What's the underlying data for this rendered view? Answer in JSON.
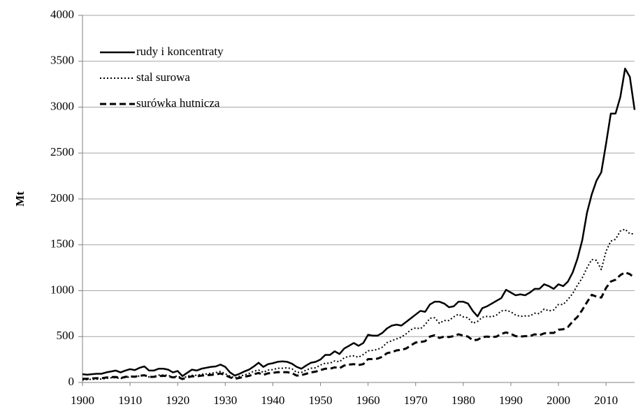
{
  "chart_data": {
    "type": "line",
    "ylabel": "Mt",
    "x": [
      1900,
      1901,
      1902,
      1903,
      1904,
      1905,
      1906,
      1907,
      1908,
      1909,
      1910,
      1911,
      1912,
      1913,
      1914,
      1915,
      1916,
      1917,
      1918,
      1919,
      1920,
      1921,
      1922,
      1923,
      1924,
      1925,
      1926,
      1927,
      1928,
      1929,
      1930,
      1931,
      1932,
      1933,
      1934,
      1935,
      1936,
      1937,
      1938,
      1939,
      1940,
      1941,
      1942,
      1943,
      1944,
      1945,
      1946,
      1947,
      1948,
      1949,
      1950,
      1951,
      1952,
      1953,
      1954,
      1955,
      1956,
      1957,
      1958,
      1959,
      1960,
      1961,
      1962,
      1963,
      1964,
      1965,
      1966,
      1967,
      1968,
      1969,
      1970,
      1971,
      1972,
      1973,
      1974,
      1975,
      1976,
      1977,
      1978,
      1979,
      1980,
      1981,
      1982,
      1983,
      1984,
      1985,
      1986,
      1987,
      1988,
      1989,
      1990,
      1991,
      1992,
      1993,
      1994,
      1995,
      1996,
      1997,
      1998,
      1999,
      2000,
      2001,
      2002,
      2003,
      2004,
      2005,
      2006,
      2007,
      2008,
      2009,
      2010,
      2011,
      2012,
      2013,
      2014,
      2015,
      2016
    ],
    "series": [
      {
        "name": "rudy i koncentraty",
        "color": "#000000",
        "style": "solid",
        "values": [
          90,
          85,
          90,
          95,
          95,
          110,
          120,
          130,
          110,
          130,
          145,
          135,
          160,
          175,
          130,
          130,
          150,
          150,
          140,
          110,
          125,
          70,
          105,
          140,
          130,
          150,
          160,
          170,
          175,
          195,
          170,
          110,
          75,
          95,
          120,
          140,
          175,
          215,
          170,
          200,
          210,
          225,
          230,
          225,
          205,
          170,
          150,
          185,
          215,
          225,
          250,
          300,
          300,
          340,
          310,
          370,
          400,
          430,
          400,
          430,
          520,
          510,
          510,
          540,
          590,
          620,
          630,
          620,
          660,
          700,
          740,
          780,
          770,
          850,
          880,
          880,
          860,
          820,
          830,
          880,
          880,
          860,
          780,
          720,
          810,
          830,
          860,
          890,
          920,
          1010,
          980,
          950,
          960,
          950,
          980,
          1020,
          1020,
          1070,
          1050,
          1020,
          1070,
          1050,
          1100,
          1200,
          1350,
          1550,
          1850,
          2050,
          2200,
          2290,
          2600,
          2930,
          2930,
          3110,
          3420,
          3330,
          2970
        ]
      },
      {
        "name": "stal surowa",
        "color": "#000000",
        "style": "dotted",
        "values": [
          28,
          31,
          35,
          36,
          37,
          45,
          51,
          52,
          42,
          55,
          60,
          60,
          72,
          76,
          60,
          66,
          80,
          82,
          78,
          58,
          72,
          44,
          68,
          78,
          78,
          90,
          93,
          100,
          108,
          120,
          95,
          70,
          50,
          68,
          82,
          98,
          123,
          135,
          110,
          135,
          140,
          155,
          155,
          160,
          150,
          110,
          110,
          135,
          155,
          160,
          190,
          210,
          210,
          235,
          225,
          270,
          285,
          290,
          275,
          305,
          345,
          350,
          360,
          385,
          435,
          455,
          475,
          495,
          530,
          575,
          595,
          585,
          630,
          700,
          705,
          645,
          675,
          675,
          715,
          745,
          715,
          705,
          645,
          665,
          710,
          720,
          715,
          735,
          780,
          785,
          770,
          735,
          720,
          725,
          725,
          755,
          750,
          800,
          780,
          790,
          850,
          850,
          905,
          970,
          1060,
          1140,
          1250,
          1340,
          1330,
          1230,
          1430,
          1540,
          1560,
          1650,
          1670,
          1620,
          1620
        ]
      },
      {
        "name": "surówka hutnicza",
        "color": "#000000",
        "style": "dashed",
        "values": [
          40,
          40,
          45,
          47,
          46,
          54,
          59,
          60,
          48,
          61,
          66,
          63,
          73,
          79,
          60,
          62,
          70,
          72,
          70,
          55,
          62,
          37,
          55,
          67,
          66,
          75,
          78,
          83,
          88,
          98,
          80,
          56,
          40,
          50,
          63,
          72,
          90,
          103,
          83,
          100,
          105,
          112,
          112,
          112,
          103,
          75,
          80,
          95,
          110,
          118,
          135,
          150,
          150,
          165,
          155,
          185,
          195,
          200,
          190,
          200,
          255,
          255,
          260,
          280,
          320,
          330,
          350,
          355,
          370,
          405,
          435,
          440,
          450,
          500,
          515,
          485,
          500,
          495,
          505,
          525,
          510,
          500,
          460,
          465,
          495,
          500,
          495,
          500,
          530,
          545,
          530,
          505,
          500,
          505,
          505,
          525,
          515,
          535,
          540,
          540,
          575,
          580,
          605,
          665,
          715,
          790,
          875,
          955,
          935,
          925,
          1030,
          1100,
          1120,
          1170,
          1200,
          1180,
          1140
        ]
      }
    ],
    "xlim": [
      1900,
      2016
    ],
    "xticks": [
      1900,
      1910,
      1920,
      1930,
      1940,
      1950,
      1960,
      1970,
      1980,
      1990,
      2000,
      2010
    ],
    "ylim": [
      0,
      4000
    ],
    "yticks": [
      0,
      500,
      1000,
      1500,
      2000,
      2500,
      3000,
      3500,
      4000
    ],
    "grid": true,
    "legend": "upper left"
  }
}
